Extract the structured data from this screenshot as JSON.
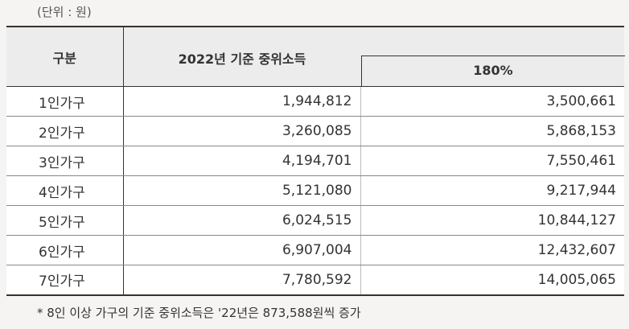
{
  "unit_note": "(단위 : 원)",
  "table": {
    "header_category": "구분",
    "header_income": "2022년 기준 중위소득",
    "header_sub": "180%",
    "rows": [
      {
        "category": "1인가구",
        "median": "1,944,812",
        "pct180": "3,500,661"
      },
      {
        "category": "2인가구",
        "median": "3,260,085",
        "pct180": "5,868,153"
      },
      {
        "category": "3인가구",
        "median": "4,194,701",
        "pct180": "7,550,461"
      },
      {
        "category": "4인가구",
        "median": "5,121,080",
        "pct180": "9,217,944"
      },
      {
        "category": "5인가구",
        "median": "6,024,515",
        "pct180": "10,844,127"
      },
      {
        "category": "6인가구",
        "median": "6,907,004",
        "pct180": "12,432,607"
      },
      {
        "category": "7인가구",
        "median": "7,780,592",
        "pct180": "14,005,065"
      }
    ]
  },
  "footnote": "* 8인 이상 가구의 기준 중위소득은 '22년은 873,588원씩 증가"
}
